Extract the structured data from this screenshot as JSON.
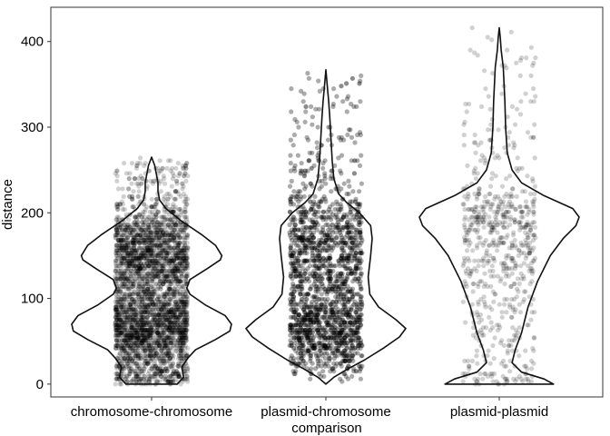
{
  "chart_data": {
    "type": "violin",
    "title": "",
    "xlabel": "comparison",
    "ylabel": "distance",
    "ylim": [
      -15,
      440
    ],
    "yticks": [
      0,
      100,
      200,
      300,
      400
    ],
    "grid": false,
    "legend": "none",
    "point_color": "#000000",
    "point_opacity": 0.18,
    "categories": [
      "chromosome-chromosome",
      "plasmid-chromosome",
      "plasmid-plasmid"
    ],
    "series": [
      {
        "category": "chromosome-chromosome",
        "min": 0,
        "max": 265,
        "point_count": 4000,
        "density_profile": [
          [
            0,
            0.32
          ],
          [
            8,
            0.4
          ],
          [
            20,
            0.38
          ],
          [
            30,
            0.45
          ],
          [
            40,
            0.55
          ],
          [
            52,
            0.8
          ],
          [
            62,
            0.98
          ],
          [
            70,
            1.0
          ],
          [
            80,
            0.92
          ],
          [
            92,
            0.68
          ],
          [
            105,
            0.48
          ],
          [
            112,
            0.44
          ],
          [
            122,
            0.48
          ],
          [
            135,
            0.7
          ],
          [
            145,
            0.86
          ],
          [
            150,
            0.88
          ],
          [
            162,
            0.8
          ],
          [
            175,
            0.62
          ],
          [
            190,
            0.38
          ],
          [
            205,
            0.18
          ],
          [
            215,
            0.1
          ],
          [
            225,
            0.08
          ],
          [
            235,
            0.08
          ],
          [
            245,
            0.06
          ],
          [
            255,
            0.04
          ],
          [
            265,
            0.0
          ]
        ]
      },
      {
        "category": "plasmid-chromosome",
        "min": 0,
        "max": 367,
        "point_count": 3500,
        "density_profile": [
          [
            0,
            0.0
          ],
          [
            8,
            0.1
          ],
          [
            18,
            0.28
          ],
          [
            28,
            0.48
          ],
          [
            42,
            0.72
          ],
          [
            55,
            0.92
          ],
          [
            65,
            1.0
          ],
          [
            75,
            0.88
          ],
          [
            90,
            0.66
          ],
          [
            105,
            0.55
          ],
          [
            125,
            0.53
          ],
          [
            150,
            0.56
          ],
          [
            170,
            0.58
          ],
          [
            185,
            0.56
          ],
          [
            200,
            0.42
          ],
          [
            212,
            0.26
          ],
          [
            222,
            0.16
          ],
          [
            240,
            0.1
          ],
          [
            260,
            0.08
          ],
          [
            285,
            0.065
          ],
          [
            310,
            0.05
          ],
          [
            330,
            0.035
          ],
          [
            345,
            0.02
          ],
          [
            367,
            0.0
          ]
        ]
      },
      {
        "category": "plasmid-plasmid",
        "min": 0,
        "max": 416,
        "point_count": 700,
        "density_profile": [
          [
            0,
            0.34
          ],
          [
            6,
            0.28
          ],
          [
            14,
            0.14
          ],
          [
            25,
            0.08
          ],
          [
            40,
            0.1
          ],
          [
            60,
            0.14
          ],
          [
            90,
            0.18
          ],
          [
            120,
            0.24
          ],
          [
            150,
            0.32
          ],
          [
            170,
            0.4
          ],
          [
            185,
            0.48
          ],
          [
            195,
            0.5
          ],
          [
            205,
            0.46
          ],
          [
            220,
            0.28
          ],
          [
            235,
            0.14
          ],
          [
            250,
            0.08
          ],
          [
            270,
            0.05
          ],
          [
            300,
            0.04
          ],
          [
            330,
            0.035
          ],
          [
            350,
            0.03
          ],
          [
            370,
            0.025
          ],
          [
            390,
            0.012
          ],
          [
            405,
            0.006
          ],
          [
            416,
            0.0
          ]
        ]
      }
    ]
  }
}
